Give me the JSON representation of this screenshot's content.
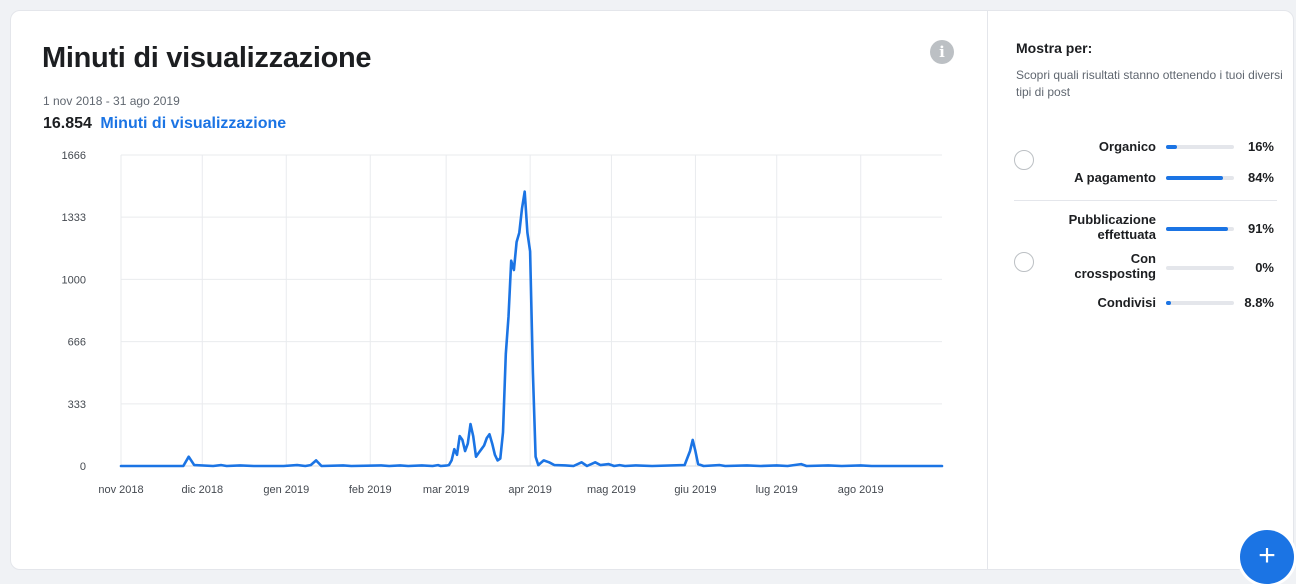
{
  "card": {
    "title": "Minuti di visualizzazione",
    "date_range": "1 nov 2018 - 31 ago 2019",
    "total_value": "16.854",
    "total_label": "Minuti di visualizzazione",
    "info_icon": "info-icon"
  },
  "chart_data": {
    "type": "line",
    "title": "Minuti di visualizzazione",
    "xlabel": "",
    "ylabel": "",
    "ylim": [
      0,
      1666
    ],
    "yticks": [
      "0",
      "333",
      "666",
      "1000",
      "1333",
      "1666"
    ],
    "xlim": [
      "2018-11-01",
      "2019-08-31"
    ],
    "xticks": [
      {
        "date": "2018-11-01",
        "label": "nov 2018"
      },
      {
        "date": "2018-12-01",
        "label": "dic 2018"
      },
      {
        "date": "2019-01-01",
        "label": "gen 2019"
      },
      {
        "date": "2019-02-01",
        "label": "feb 2019"
      },
      {
        "date": "2019-03-01",
        "label": "mar 2019"
      },
      {
        "date": "2019-04-01",
        "label": "apr 2019"
      },
      {
        "date": "2019-05-01",
        "label": "mag 2019"
      },
      {
        "date": "2019-06-01",
        "label": "giu 2019"
      },
      {
        "date": "2019-07-01",
        "label": "lug 2019"
      },
      {
        "date": "2019-08-01",
        "label": "ago 2019"
      }
    ],
    "grid": true,
    "color": "#1b74e4",
    "series": [
      {
        "points": [
          [
            "2018-11-01",
            0
          ],
          [
            "2018-11-24",
            0
          ],
          [
            "2018-11-26",
            50
          ],
          [
            "2018-11-28",
            5
          ],
          [
            "2018-12-05",
            0
          ],
          [
            "2018-12-08",
            5
          ],
          [
            "2018-12-10",
            0
          ],
          [
            "2018-12-15",
            3
          ],
          [
            "2018-12-20",
            0
          ],
          [
            "2018-12-31",
            0
          ],
          [
            "2019-01-05",
            5
          ],
          [
            "2019-01-08",
            0
          ],
          [
            "2019-01-10",
            5
          ],
          [
            "2019-01-12",
            30
          ],
          [
            "2019-01-14",
            0
          ],
          [
            "2019-01-22",
            3
          ],
          [
            "2019-01-25",
            0
          ],
          [
            "2019-02-05",
            3
          ],
          [
            "2019-02-08",
            0
          ],
          [
            "2019-02-12",
            3
          ],
          [
            "2019-02-15",
            0
          ],
          [
            "2019-02-20",
            3
          ],
          [
            "2019-02-24",
            0
          ],
          [
            "2019-02-26",
            5
          ],
          [
            "2019-02-27",
            0
          ],
          [
            "2019-03-01",
            2
          ],
          [
            "2019-03-02",
            5
          ],
          [
            "2019-03-03",
            30
          ],
          [
            "2019-03-04",
            90
          ],
          [
            "2019-03-05",
            60
          ],
          [
            "2019-03-06",
            160
          ],
          [
            "2019-03-07",
            140
          ],
          [
            "2019-03-08",
            80
          ],
          [
            "2019-03-09",
            120
          ],
          [
            "2019-03-10",
            225
          ],
          [
            "2019-03-11",
            160
          ],
          [
            "2019-03-12",
            50
          ],
          [
            "2019-03-13",
            70
          ],
          [
            "2019-03-14",
            90
          ],
          [
            "2019-03-15",
            110
          ],
          [
            "2019-03-16",
            150
          ],
          [
            "2019-03-17",
            170
          ],
          [
            "2019-03-18",
            120
          ],
          [
            "2019-03-19",
            60
          ],
          [
            "2019-03-20",
            30
          ],
          [
            "2019-03-21",
            40
          ],
          [
            "2019-03-22",
            180
          ],
          [
            "2019-03-23",
            600
          ],
          [
            "2019-03-24",
            800
          ],
          [
            "2019-03-25",
            1100
          ],
          [
            "2019-03-26",
            1050
          ],
          [
            "2019-03-27",
            1200
          ],
          [
            "2019-03-28",
            1250
          ],
          [
            "2019-03-29",
            1380
          ],
          [
            "2019-03-30",
            1470
          ],
          [
            "2019-03-31",
            1250
          ],
          [
            "2019-04-01",
            1150
          ],
          [
            "2019-04-02",
            500
          ],
          [
            "2019-04-03",
            50
          ],
          [
            "2019-04-04",
            5
          ],
          [
            "2019-04-06",
            30
          ],
          [
            "2019-04-08",
            20
          ],
          [
            "2019-04-10",
            5
          ],
          [
            "2019-04-14",
            3
          ],
          [
            "2019-04-17",
            0
          ],
          [
            "2019-04-20",
            20
          ],
          [
            "2019-04-22",
            0
          ],
          [
            "2019-04-25",
            20
          ],
          [
            "2019-04-27",
            5
          ],
          [
            "2019-04-30",
            10
          ],
          [
            "2019-05-02",
            0
          ],
          [
            "2019-05-04",
            5
          ],
          [
            "2019-05-06",
            0
          ],
          [
            "2019-05-10",
            3
          ],
          [
            "2019-05-16",
            0
          ],
          [
            "2019-05-28",
            5
          ],
          [
            "2019-05-30",
            80
          ],
          [
            "2019-05-31",
            140
          ],
          [
            "2019-06-01",
            80
          ],
          [
            "2019-06-02",
            10
          ],
          [
            "2019-06-04",
            0
          ],
          [
            "2019-06-10",
            5
          ],
          [
            "2019-06-12",
            0
          ],
          [
            "2019-06-20",
            3
          ],
          [
            "2019-06-25",
            0
          ],
          [
            "2019-07-01",
            3
          ],
          [
            "2019-07-05",
            0
          ],
          [
            "2019-07-10",
            10
          ],
          [
            "2019-07-12",
            0
          ],
          [
            "2019-07-20",
            3
          ],
          [
            "2019-07-25",
            0
          ],
          [
            "2019-08-01",
            3
          ],
          [
            "2019-08-05",
            0
          ],
          [
            "2019-08-31",
            0
          ]
        ]
      }
    ]
  },
  "mostra": {
    "title": "Mostra per:",
    "description": "Scopri quali risultati stanno ottenendo i tuoi diversi tipi di post",
    "groups": [
      {
        "rows": [
          {
            "label": "Organico",
            "value": 0.16,
            "pct": "16%"
          },
          {
            "label": "A pagamento",
            "value": 0.84,
            "pct": "84%"
          }
        ]
      },
      {
        "rows": [
          {
            "label": "Pubblicazione effettuata",
            "value": 0.91,
            "pct": "91%"
          },
          {
            "label": "Con crossposting",
            "value": 0.0,
            "pct": "0%"
          },
          {
            "label": "Condivisi",
            "value": 0.088,
            "pct": "8.8%"
          }
        ]
      }
    ]
  },
  "fab": {
    "icon": "plus-icon",
    "glyph": "+"
  }
}
